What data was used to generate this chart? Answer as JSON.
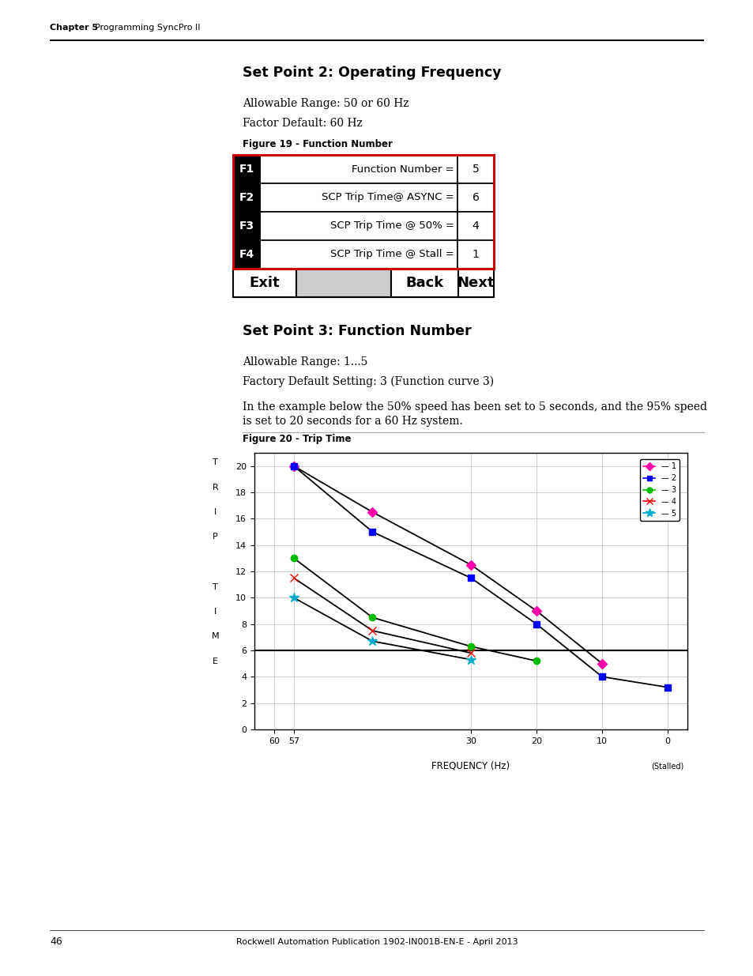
{
  "page_header_chapter": "Chapter 5",
  "page_header_title": "Programming SyncPro II",
  "section1_title": "Set Point 2: Operating Frequency",
  "section1_text1": "Allowable Range: 50 or 60 Hz",
  "section1_text2": "Factor Default: 60 Hz",
  "figure19_label": "Figure 19 - Function Number",
  "table_rows": [
    {
      "key": "F1",
      "label": "Function Number =",
      "value": "5"
    },
    {
      "key": "F2",
      "label": "SCP Trip Time@ ASYNC =",
      "value": "6"
    },
    {
      "key": "F3",
      "label": "SCP Trip Time @ 50% =",
      "value": "4"
    },
    {
      "key": "F4",
      "label": "SCP Trip Time @ Stall =",
      "value": "1"
    }
  ],
  "section2_title": "Set Point 3: Function Number",
  "section2_text1": "Allowable Range: 1...5",
  "section2_text2": "Factory Default Setting: 3 (Function curve 3)",
  "section2_text3a": "In the example below the 50% speed has been set to 5 seconds, and the 95% speed",
  "section2_text3b": "is set to 20 seconds for a 60 Hz system.",
  "figure20_label": "Figure 20 - Trip Time",
  "graph_xlabel": "FREQUENCY (Hz)",
  "graph_ylabel_lines": [
    "T",
    "R",
    "I",
    "P",
    "",
    "T",
    "I",
    "M",
    "E"
  ],
  "series": [
    {
      "name": "1",
      "color": "#FF00AA",
      "marker": "D",
      "x": [
        57,
        45,
        30,
        20,
        10
      ],
      "y": [
        20,
        16.5,
        12.5,
        9.0,
        5.0
      ]
    },
    {
      "name": "2",
      "color": "#0000FF",
      "marker": "s",
      "x": [
        57,
        45,
        30,
        20,
        10,
        0
      ],
      "y": [
        20,
        15.0,
        11.5,
        8.0,
        4.0,
        3.2
      ]
    },
    {
      "name": "3",
      "color": "#00BB00",
      "marker": "o",
      "x": [
        57,
        45,
        30,
        20
      ],
      "y": [
        13.0,
        8.5,
        6.3,
        5.2
      ]
    },
    {
      "name": "4",
      "color": "#FF0000",
      "marker": "x",
      "x": [
        57,
        45,
        30
      ],
      "y": [
        11.5,
        7.5,
        5.8
      ]
    },
    {
      "name": "5",
      "color": "#00AACC",
      "marker": "*",
      "x": [
        57,
        45,
        30
      ],
      "y": [
        10.0,
        6.7,
        5.3
      ]
    }
  ],
  "page_number": "46",
  "footer_text": "Rockwell Automation Publication 1902-IN001B-EN-E - April 2013",
  "background_color": "#FFFFFF"
}
